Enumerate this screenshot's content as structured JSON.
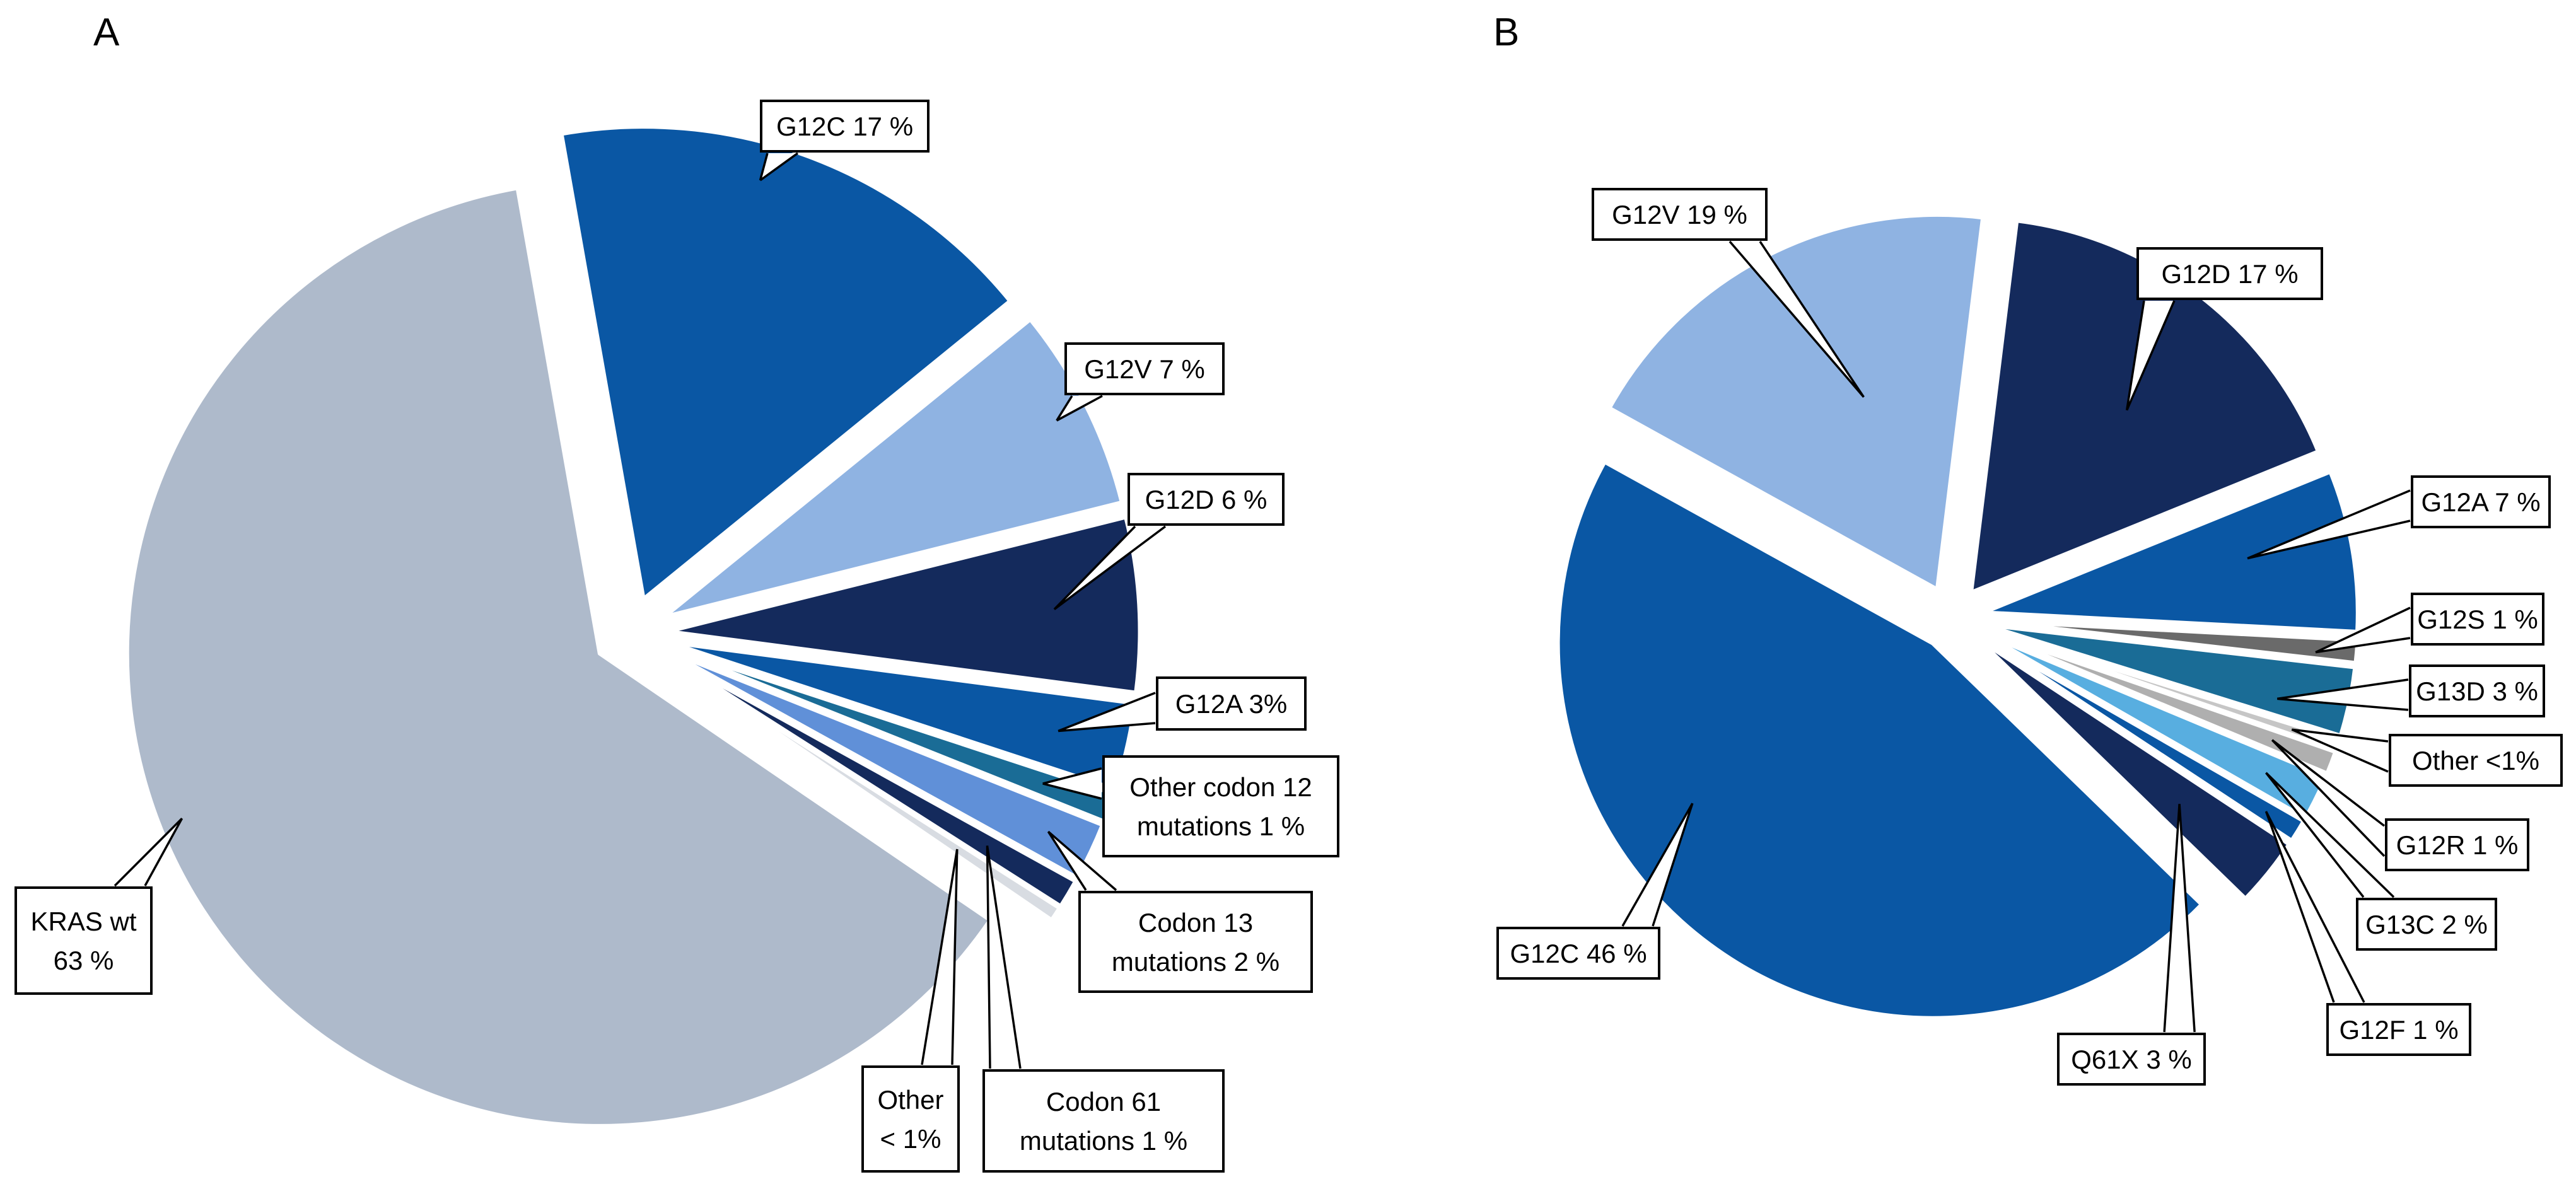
{
  "panels": {
    "a": "A",
    "b": "B"
  },
  "chart_data": [
    {
      "type": "pie",
      "panel": "A",
      "description": "Exploded pie chart of KRAS mutation frequencies, panel A",
      "slices": [
        {
          "id": "g12c",
          "label": "G12C 17 %",
          "lines": [
            "G12C 17 %"
          ],
          "value": 17,
          "color": "#0A57A4"
        },
        {
          "id": "g12v",
          "label": "G12V 7 %",
          "lines": [
            "G12V 7 %"
          ],
          "value": 7,
          "color": "#8FB3E2"
        },
        {
          "id": "g12d",
          "label": "G12D 6 %",
          "lines": [
            "G12D 6 %"
          ],
          "value": 6,
          "color": "#142A5C"
        },
        {
          "id": "g12a",
          "label": "G12A 3%",
          "lines": [
            "G12A 3%"
          ],
          "value": 3,
          "color": "#0A57A4"
        },
        {
          "id": "oc12",
          "label": "Other codon 12 mutations 1 %",
          "lines": [
            "Other codon 12",
            "mutations 1 %"
          ],
          "value": 1,
          "color": "#1A6C96"
        },
        {
          "id": "c13",
          "label": "Codon 13 mutations 2 %",
          "lines": [
            "Codon 13",
            "mutations 2 %"
          ],
          "value": 2,
          "color": "#6090D8"
        },
        {
          "id": "c61",
          "label": "Codon 61 mutations 1 %",
          "lines": [
            "Codon 61",
            "mutations 1 %"
          ],
          "value": 1,
          "color": "#142A5C"
        },
        {
          "id": "oth_a",
          "label": "Other < 1%",
          "lines": [
            "Other",
            "< 1%"
          ],
          "value": 0.5,
          "color": "#D8DCE2"
        },
        {
          "id": "kras",
          "label": "KRAS wt 63 %",
          "lines": [
            "KRAS wt",
            "63 %"
          ],
          "value": 63,
          "color": "#AEBACB"
        }
      ]
    },
    {
      "type": "pie",
      "panel": "B",
      "description": "Exploded pie chart of KRAS mutation subtype frequencies, panel B",
      "slices": [
        {
          "id": "b_g12d",
          "label": "G12D 17 %",
          "lines": [
            "G12D 17 %"
          ],
          "value": 17,
          "color": "#142A5C"
        },
        {
          "id": "b_g12a",
          "label": "G12A 7 %",
          "lines": [
            "G12A 7 %"
          ],
          "value": 7,
          "color": "#0A57A4"
        },
        {
          "id": "b_g12s",
          "label": "G12S 1 %",
          "lines": [
            "G12S 1 %"
          ],
          "value": 1,
          "color": "#6A6A6A"
        },
        {
          "id": "b_g13d",
          "label": "G13D 3 %",
          "lines": [
            "G13D 3 %"
          ],
          "value": 3,
          "color": "#1A6C96"
        },
        {
          "id": "b_oth",
          "label": "Other <1%",
          "lines": [
            "Other <1%"
          ],
          "value": 0.5,
          "color": "#C6C6C6"
        },
        {
          "id": "b_g12r",
          "label": "G12R 1 %",
          "lines": [
            "G12R 1 %"
          ],
          "value": 1,
          "color": "#AFAFAF"
        },
        {
          "id": "b_g13c",
          "label": "G13C 2 %",
          "lines": [
            "G13C 2 %"
          ],
          "value": 2,
          "color": "#58AEE0"
        },
        {
          "id": "b_g12f",
          "label": "G12F 1 %",
          "lines": [
            "G12F 1 %"
          ],
          "value": 1,
          "color": "#0A57A4"
        },
        {
          "id": "b_q61x",
          "label": "Q61X 3 %",
          "lines": [
            "Q61X 3 %"
          ],
          "value": 3,
          "color": "#142A5C"
        },
        {
          "id": "b_g12c",
          "label": "G12C 46 %",
          "lines": [
            "G12C 46 %"
          ],
          "value": 46,
          "color": "#0A57A4"
        },
        {
          "id": "b_g12v",
          "label": "G12V 19 %",
          "lines": [
            "G12V 19 %"
          ],
          "value": 19,
          "color": "#8FB3E2"
        }
      ]
    }
  ]
}
